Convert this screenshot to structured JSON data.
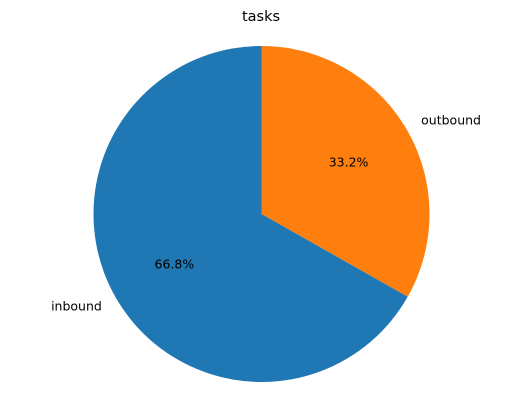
{
  "chart_data": {
    "type": "pie",
    "title": "tasks",
    "slices": [
      {
        "label": "outbound",
        "value": 33.2,
        "pct_label": "33.2%",
        "color": "#ff7f0e"
      },
      {
        "label": "inbound",
        "value": 66.8,
        "pct_label": "66.8%",
        "color": "#1f77b4"
      }
    ],
    "start_angle_deg": 90,
    "direction": "clockwise",
    "legend": "none"
  }
}
